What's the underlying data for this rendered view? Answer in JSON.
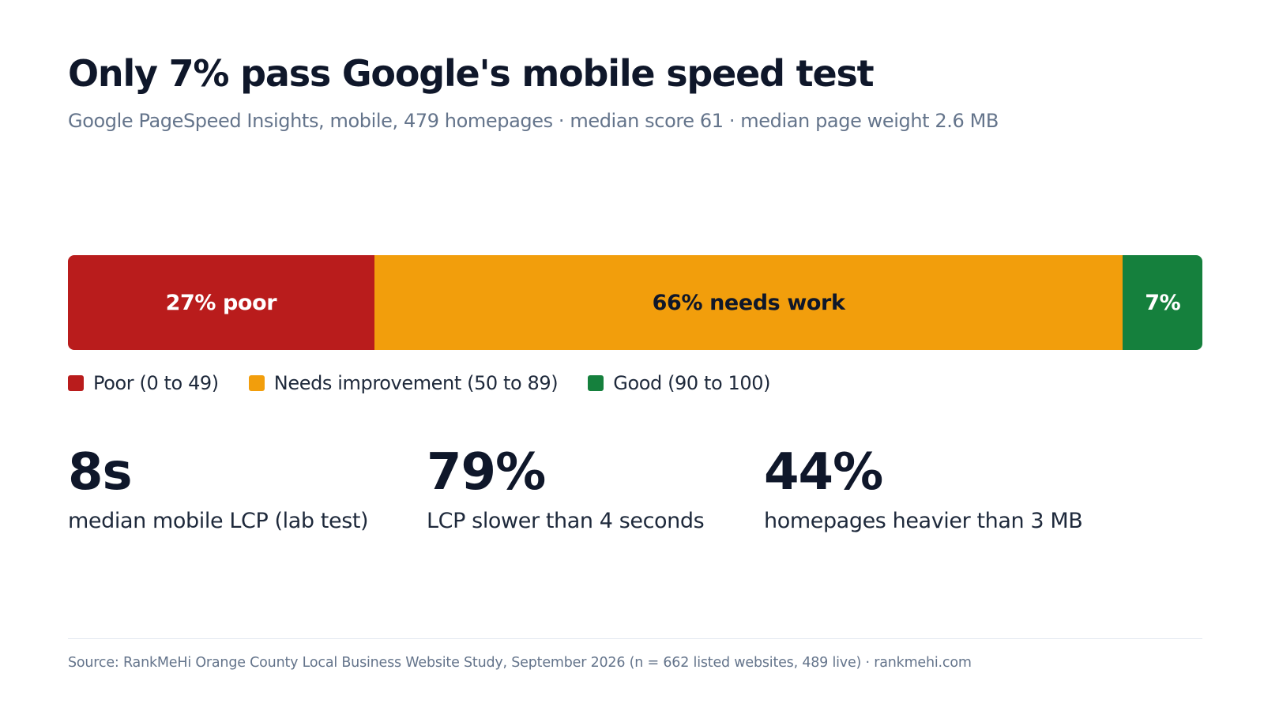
{
  "title": "Only 7% pass Google's mobile speed test",
  "subtitle": "Google PageSpeed Insights, mobile, 479 homepages · median score 61 · median page weight 2.6 MB",
  "chart_data": {
    "type": "bar",
    "orientation": "horizontal-stacked",
    "series": [
      {
        "name": "Poor (0 to 49)",
        "value": 27,
        "label": "27% poor",
        "color": "#b91c1c",
        "text_color": "#ffffff"
      },
      {
        "name": "Needs improvement (50 to 89)",
        "value": 66,
        "label": "66% needs work",
        "color": "#f29e0c",
        "text_color": "#0f172a"
      },
      {
        "name": "Good (90 to 100)",
        "value": 7,
        "label": "7%",
        "color": "#15803d",
        "text_color": "#ffffff"
      }
    ],
    "legend_placement": "bottom-left"
  },
  "stats": [
    {
      "value": "8s",
      "label": "median mobile LCP (lab test)"
    },
    {
      "value": "79%",
      "label": "LCP slower than 4 seconds"
    },
    {
      "value": "44%",
      "label": "homepages heavier than 3 MB"
    }
  ],
  "source": "Source: RankMeHi Orange County Local Business Website Study, September 2026 (n = 662 listed websites, 489 live) · rankmehi.com"
}
